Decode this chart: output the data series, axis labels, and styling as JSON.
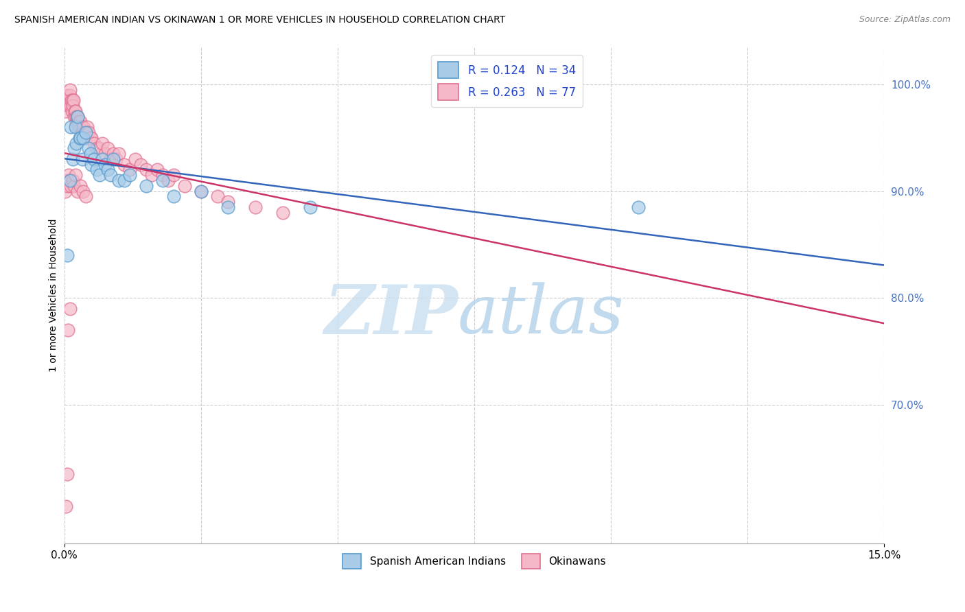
{
  "title": "SPANISH AMERICAN INDIAN VS OKINAWAN 1 OR MORE VEHICLES IN HOUSEHOLD CORRELATION CHART",
  "source": "Source: ZipAtlas.com",
  "ylabel": "1 or more Vehicles in Household",
  "xlim": [
    0.0,
    15.0
  ],
  "ylim": [
    57.0,
    103.5
  ],
  "legend_r1": "R = 0.124",
  "legend_n1": "N = 34",
  "legend_r2": "R = 0.263",
  "legend_n2": "N = 77",
  "legend_label1": "Spanish American Indians",
  "legend_label2": "Okinawans",
  "blue_color": "#a8cce8",
  "pink_color": "#f4b8c8",
  "blue_edge_color": "#5599cc",
  "pink_edge_color": "#e07090",
  "blue_line_color": "#3366bb",
  "pink_line_color": "#cc3366",
  "ytick_vals": [
    70.0,
    80.0,
    90.0,
    100.0
  ],
  "ytick_labels": [
    "70.0%",
    "80.0%",
    "90.0%",
    "100.0%"
  ],
  "blue_x": [
    0.05,
    0.1,
    0.12,
    0.15,
    0.18,
    0.2,
    0.22,
    0.25,
    0.28,
    0.3,
    0.33,
    0.35,
    0.4,
    0.45,
    0.48,
    0.5,
    0.55,
    0.6,
    0.65,
    0.7,
    0.75,
    0.8,
    0.85,
    0.9,
    1.0,
    1.1,
    1.2,
    1.5,
    1.8,
    2.0,
    2.5,
    3.0,
    4.5,
    10.5
  ],
  "blue_y": [
    84.0,
    91.0,
    96.0,
    93.0,
    94.0,
    96.0,
    94.5,
    97.0,
    95.0,
    95.0,
    93.0,
    95.0,
    95.5,
    94.0,
    93.5,
    92.5,
    93.0,
    92.0,
    91.5,
    93.0,
    92.5,
    92.0,
    91.5,
    93.0,
    91.0,
    91.0,
    91.5,
    90.5,
    91.0,
    89.5,
    90.0,
    88.5,
    88.5,
    88.5
  ],
  "pink_x": [
    0.03,
    0.05,
    0.07,
    0.08,
    0.09,
    0.1,
    0.11,
    0.12,
    0.13,
    0.14,
    0.15,
    0.16,
    0.17,
    0.18,
    0.19,
    0.2,
    0.21,
    0.22,
    0.23,
    0.24,
    0.25,
    0.26,
    0.27,
    0.28,
    0.3,
    0.32,
    0.33,
    0.35,
    0.37,
    0.4,
    0.42,
    0.45,
    0.48,
    0.5,
    0.55,
    0.6,
    0.65,
    0.7,
    0.75,
    0.8,
    0.85,
    0.9,
    0.95,
    1.0,
    1.1,
    1.2,
    1.3,
    1.4,
    1.5,
    1.6,
    1.7,
    1.8,
    1.9,
    2.0,
    2.2,
    2.5,
    2.8,
    3.0,
    3.5,
    4.0,
    0.02,
    0.04,
    0.06,
    0.08,
    0.1,
    0.12,
    0.15,
    0.18,
    0.2,
    0.25,
    0.3,
    0.35,
    0.4,
    0.03,
    0.05,
    0.07,
    0.1
  ],
  "pink_y": [
    97.5,
    99.0,
    98.5,
    98.0,
    98.5,
    99.0,
    99.5,
    98.0,
    98.5,
    97.5,
    98.5,
    98.0,
    98.5,
    97.0,
    97.5,
    97.0,
    97.5,
    96.5,
    97.0,
    96.5,
    97.0,
    96.0,
    96.5,
    96.0,
    96.5,
    96.0,
    95.5,
    96.0,
    95.5,
    95.0,
    96.0,
    95.5,
    95.0,
    95.0,
    94.5,
    94.0,
    94.0,
    94.5,
    93.5,
    94.0,
    93.0,
    93.5,
    93.0,
    93.5,
    92.5,
    92.0,
    93.0,
    92.5,
    92.0,
    91.5,
    92.0,
    91.5,
    91.0,
    91.5,
    90.5,
    90.0,
    89.5,
    89.0,
    88.5,
    88.0,
    90.0,
    91.0,
    90.5,
    91.5,
    91.0,
    90.5,
    91.0,
    90.5,
    91.5,
    90.0,
    90.5,
    90.0,
    89.5,
    60.5,
    63.5,
    77.0,
    79.0
  ]
}
